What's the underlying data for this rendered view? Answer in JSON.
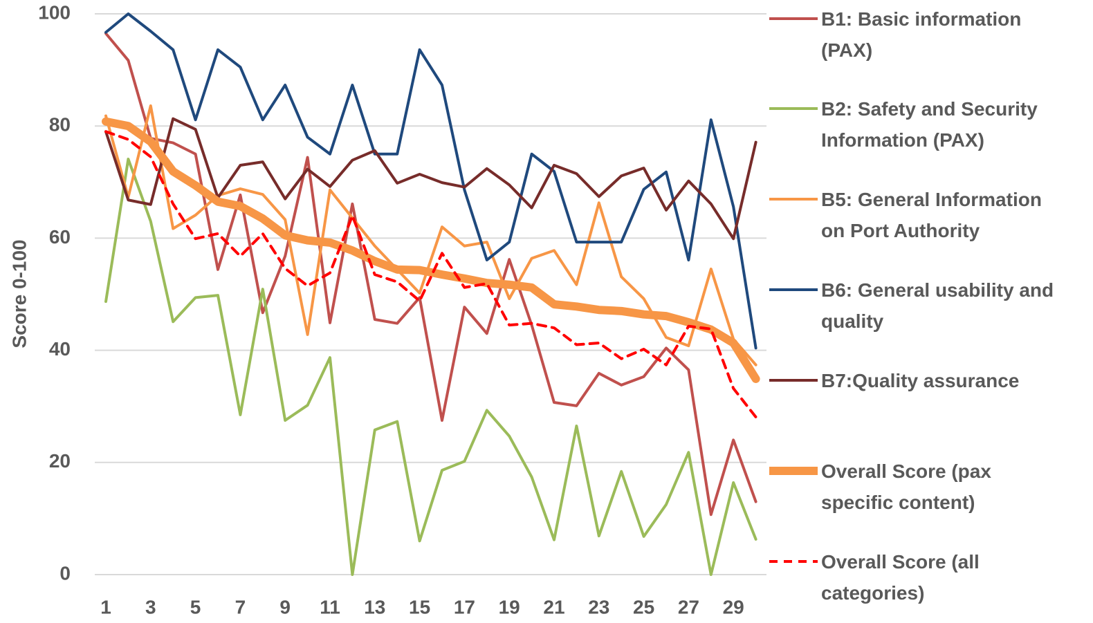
{
  "chart_data": {
    "type": "line",
    "y_label": "Score 0-100",
    "x": [
      1,
      2,
      3,
      4,
      5,
      6,
      7,
      8,
      9,
      10,
      11,
      12,
      13,
      14,
      15,
      16,
      17,
      18,
      19,
      20,
      21,
      22,
      23,
      24,
      25,
      26,
      27,
      28,
      29,
      30
    ],
    "xlim": [
      1,
      30
    ],
    "xticks": [
      1,
      3,
      5,
      7,
      9,
      11,
      13,
      15,
      17,
      19,
      21,
      23,
      25,
      27,
      29
    ],
    "ylim": [
      0,
      100
    ],
    "yticks": [
      0,
      20,
      40,
      60,
      80,
      100
    ],
    "grid": true,
    "legend": "right",
    "series": [
      {
        "name": "B1: Basic information (PAX)",
        "color": "#c0504d",
        "values": [
          96.5,
          91.7,
          77.8,
          77,
          75,
          54.4,
          67.7,
          46.7,
          56.8,
          74.4,
          44.9,
          66.1,
          45.5,
          44.8,
          49.4,
          27.5,
          47.7,
          43,
          56.2,
          44.5,
          30.7,
          30.1,
          35.9,
          33.8,
          35.3,
          40.4,
          36.5,
          10.7,
          24,
          13
        ]
      },
      {
        "name": "B2: Safety and Security Information (PAX)",
        "color": "#9bbb59",
        "values": [
          48.7,
          74.1,
          63,
          45.1,
          49.4,
          49.8,
          28.5,
          50.9,
          27.5,
          30.2,
          38.7,
          0,
          25.8,
          27.3,
          6,
          18.6,
          20.2,
          29.3,
          24.7,
          17.4,
          6.2,
          26.5,
          6.9,
          18.4,
          6.8,
          12.5,
          21.8,
          0,
          16.4,
          6.3
        ]
      },
      {
        "name": "B5: General Information on Port Authority",
        "color": "#f79646",
        "values": [
          81.8,
          67.3,
          83.6,
          61.7,
          64.1,
          67.6,
          68.8,
          67.8,
          63.3,
          42.8,
          68.6,
          63.6,
          58.6,
          54.4,
          50.2,
          62,
          58.6,
          59.3,
          49.2,
          56.4,
          57.8,
          51.7,
          66.3,
          53.1,
          49.2,
          42.3,
          40.8,
          54.5,
          42,
          37.4
        ]
      },
      {
        "name": "B6: General usability and quality",
        "color": "#1f497d",
        "values": [
          96.7,
          100,
          96.9,
          93.6,
          81.1,
          93.6,
          90.5,
          81.1,
          87.3,
          78,
          75,
          87.3,
          75,
          75,
          93.6,
          87.3,
          68.6,
          56.1,
          59.3,
          75,
          71.9,
          59.3,
          59.3,
          59.3,
          68.7,
          71.8,
          56.1,
          81.1,
          65.6,
          40.4
        ]
      },
      {
        "name": "B7:Quality assurance",
        "color": "#772c2a",
        "values": [
          79,
          66.8,
          66,
          81.3,
          79.4,
          67.2,
          73,
          73.6,
          67,
          72.3,
          69.2,
          73.9,
          75.6,
          69.8,
          71.4,
          69.9,
          69.1,
          72.4,
          69.5,
          65.4,
          73,
          71.5,
          67.4,
          71.1,
          72.5,
          65,
          70.2,
          66.1,
          59.9,
          77.1
        ]
      },
      {
        "name": "Overall Score (pax specific content)",
        "color": "#f79646",
        "width": 12,
        "values": [
          80.8,
          80,
          77.2,
          71.9,
          69.4,
          66.5,
          65.7,
          63.5,
          60.5,
          59.6,
          59.2,
          57.8,
          55.9,
          54.4,
          54.3,
          53.5,
          52.8,
          52,
          51.7,
          51.2,
          48.2,
          47.8,
          47.2,
          47,
          46.4,
          46.1,
          45,
          43.7,
          41.3,
          34.9
        ]
      },
      {
        "name": "Overall Score (all categories)",
        "color": "#ff0000",
        "dashed": true,
        "values": [
          79,
          77.6,
          74.5,
          66.1,
          59.9,
          60.8,
          56.8,
          60.8,
          54.6,
          51.5,
          53.8,
          64,
          53.5,
          52.2,
          48.8,
          57.3,
          51.2,
          51.9,
          44.5,
          44.8,
          44,
          41,
          41.3,
          38.5,
          40.2,
          37.4,
          44.3,
          43.8,
          33.2,
          28.1
        ]
      }
    ]
  }
}
